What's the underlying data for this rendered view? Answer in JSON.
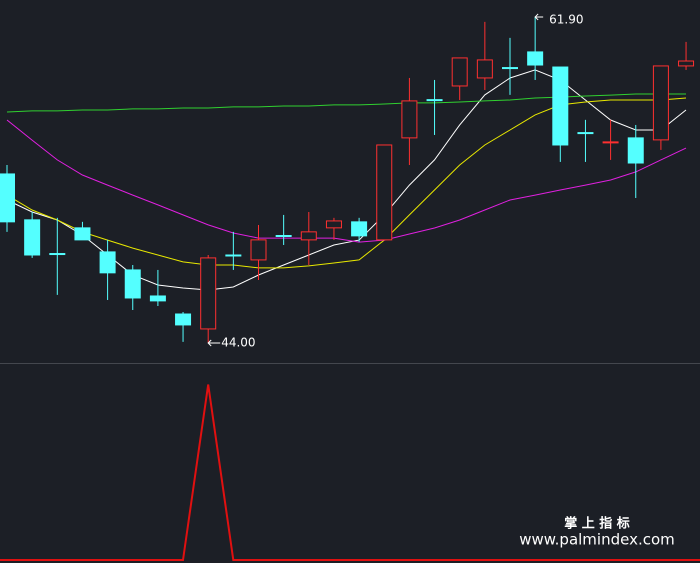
{
  "chart_data": [
    {
      "type": "candlestick",
      "open": [
        53.28,
        50.76,
        48.91,
        50.32,
        49.0,
        48.01,
        46.58,
        45.59,
        44.77,
        48.83,
        48.56,
        49.9,
        49.66,
        50.32,
        50.65,
        49.66,
        55.26,
        57.36,
        58.11,
        58.55,
        59.12,
        59.98,
        59.15,
        55.55,
        55.02,
        55.26,
        55.15,
        59.21
      ],
      "high": [
        53.77,
        51.19,
        50.87,
        50.65,
        49.66,
        48.28,
        48.01,
        45.7,
        48.83,
        50.1,
        50.48,
        51.03,
        51.19,
        50.87,
        50.87,
        54.87,
        58.55,
        58.44,
        59.65,
        61.63,
        60.75,
        61.9,
        59.15,
        56.25,
        56.25,
        55.97,
        59.21,
        60.53
      ],
      "low": [
        50.1,
        48.67,
        46.64,
        49.66,
        46.36,
        45.81,
        46.03,
        44.06,
        44.0,
        48.01,
        47.46,
        49.38,
        48.28,
        49.66,
        49.55,
        49.66,
        53.77,
        55.42,
        57.34,
        57.89,
        57.62,
        58.44,
        53.94,
        53.94,
        54.05,
        51.96,
        54.6,
        58.99
      ],
      "close": [
        50.65,
        48.83,
        48.89,
        49.66,
        47.85,
        46.47,
        46.31,
        44.99,
        48.67,
        48.8,
        49.66,
        49.88,
        50.1,
        50.7,
        49.88,
        54.87,
        57.29,
        57.34,
        59.65,
        59.54,
        59.1,
        59.26,
        54.87,
        55.53,
        55.04,
        53.88,
        59.21,
        59.48
      ],
      "up_color": "#ff3030",
      "down_color": "#54ffff",
      "ylim": [
        42.9,
        62.83
      ],
      "lines": [
        {
          "color": "#ffffff",
          "values": [
            51.85,
            51.19,
            50.75,
            49.93,
            48.83,
            47.73,
            47.18,
            47.02,
            46.91,
            47.07,
            47.73,
            48.28,
            48.83,
            49.38,
            49.65,
            51.03,
            52.67,
            54.05,
            55.97,
            57.62,
            58.55,
            58.99,
            58.44,
            57.34,
            56.24,
            55.69,
            55.69,
            56.79
          ]
        },
        {
          "color": "#e8e800",
          "values": [
            52.12,
            51.3,
            50.75,
            50.09,
            49.65,
            49.21,
            48.83,
            48.45,
            48.28,
            48.28,
            48.12,
            48.12,
            48.23,
            48.39,
            48.56,
            49.65,
            51.03,
            52.4,
            53.77,
            54.87,
            55.69,
            56.52,
            57.07,
            57.23,
            57.34,
            57.34,
            57.34,
            57.45
          ]
        },
        {
          "color": "#e020e0",
          "values": [
            56.24,
            55.14,
            54.05,
            53.22,
            52.67,
            52.12,
            51.58,
            51.03,
            50.48,
            50.04,
            49.76,
            49.76,
            49.76,
            49.76,
            49.54,
            49.65,
            49.98,
            50.31,
            50.75,
            51.3,
            51.85,
            52.12,
            52.4,
            52.67,
            52.95,
            53.39,
            54.05,
            54.7
          ]
        },
        {
          "color": "#30d030",
          "values": [
            56.68,
            56.74,
            56.74,
            56.79,
            56.79,
            56.85,
            56.85,
            56.9,
            56.9,
            56.96,
            56.96,
            57.01,
            57.01,
            57.07,
            57.07,
            57.12,
            57.18,
            57.18,
            57.23,
            57.29,
            57.34,
            57.45,
            57.5,
            57.56,
            57.61,
            57.67,
            57.67,
            57.67
          ]
        }
      ],
      "high_label": "61.90",
      "low_label": "44.00"
    },
    {
      "type": "line",
      "color": "#e01010",
      "ylim": [
        0,
        1.1
      ],
      "values": [
        0,
        0,
        0,
        0,
        0,
        0,
        0,
        0,
        1,
        0,
        0,
        0,
        0,
        0,
        0,
        0,
        0,
        0,
        0,
        0,
        0,
        0,
        0,
        0,
        0,
        0,
        0,
        0
      ]
    }
  ],
  "watermark": {
    "title": "掌 上 指 标",
    "url": "www.palmindex.com"
  }
}
